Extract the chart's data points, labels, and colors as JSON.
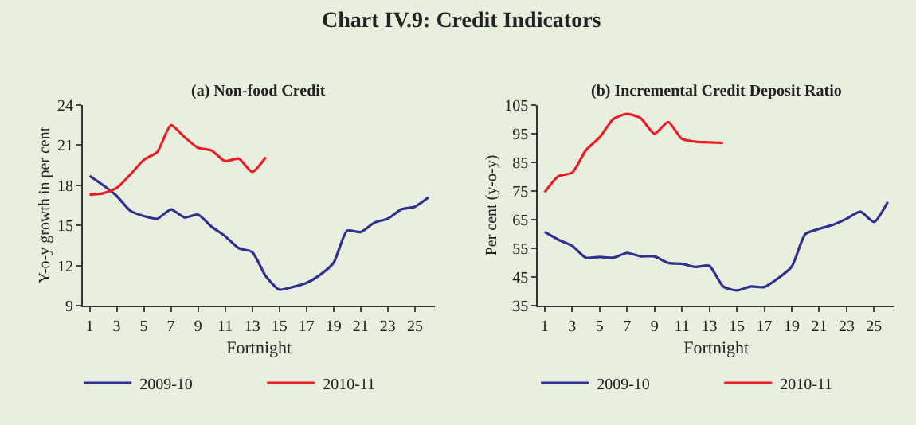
{
  "chart_data": [
    {
      "type": "line",
      "title": "(a) Non-food Credit",
      "annotations": [
        "Chart IV.9: Credit Indicators"
      ],
      "xlabel": "Fortnight",
      "ylabel": "Y-o-y growth in per cent",
      "x": [
        1,
        2,
        3,
        4,
        5,
        6,
        7,
        8,
        9,
        10,
        11,
        12,
        13,
        14,
        15,
        16,
        17,
        18,
        19,
        20,
        21,
        22,
        23,
        24,
        25,
        26
      ],
      "series": [
        {
          "name": "2009-10",
          "color": "#2e3192",
          "values": [
            18.7,
            18.0,
            17.2,
            16.1,
            15.7,
            15.5,
            16.2,
            15.6,
            15.8,
            14.9,
            14.2,
            13.3,
            13.0,
            11.2,
            10.2,
            10.4,
            10.7,
            11.3,
            12.2,
            14.6,
            14.5,
            15.2,
            15.5,
            16.2,
            16.4,
            17.1
          ]
        },
        {
          "name": "2010-11",
          "color": "#ed1c24",
          "values": [
            17.3,
            17.4,
            17.8,
            18.8,
            19.9,
            20.5,
            22.5,
            21.6,
            20.8,
            20.6,
            19.8,
            20.0,
            19.0,
            20.1,
            null,
            null,
            null,
            null,
            null,
            null,
            null,
            null,
            null,
            null,
            null,
            null
          ]
        }
      ],
      "xlim": [
        0.5,
        26.5
      ],
      "xticks": [
        1,
        3,
        5,
        7,
        9,
        11,
        13,
        15,
        17,
        19,
        21,
        23,
        25
      ],
      "ylim": [
        9,
        24
      ],
      "yticks": [
        9,
        12,
        15,
        18,
        21,
        24
      ],
      "grid": false,
      "legend": "bottom"
    },
    {
      "type": "line",
      "title": "(b) Incremental Credit Deposit Ratio",
      "xlabel": "Fortnight",
      "ylabel": "Per cent (y-o-y)",
      "x": [
        1,
        2,
        3,
        4,
        5,
        6,
        7,
        8,
        9,
        10,
        11,
        12,
        13,
        14,
        15,
        16,
        17,
        18,
        19,
        20,
        21,
        22,
        23,
        24,
        25,
        26
      ],
      "series": [
        {
          "name": "2009-10",
          "color": "#2e3192",
          "values": [
            60.7,
            58.0,
            55.9,
            51.7,
            52.0,
            51.7,
            53.4,
            52.2,
            52.2,
            49.9,
            49.6,
            48.5,
            48.9,
            41.7,
            40.3,
            41.7,
            41.5,
            44.5,
            48.6,
            60.0,
            61.8,
            63.2,
            65.3,
            67.8,
            64.2,
            71.2
          ]
        },
        {
          "name": "2010-11",
          "color": "#ed1c24",
          "values": [
            74.6,
            80.2,
            81.4,
            89.2,
            93.7,
            100.1,
            101.9,
            100.4,
            95.0,
            99.1,
            93.2,
            92.2,
            92.0,
            91.8,
            null,
            null,
            null,
            null,
            null,
            null,
            null,
            null,
            null,
            null,
            null,
            null
          ]
        }
      ],
      "xlim": [
        0.5,
        26.5
      ],
      "xticks": [
        1,
        3,
        5,
        7,
        9,
        11,
        13,
        15,
        17,
        19,
        21,
        23,
        25
      ],
      "ylim": [
        35,
        105
      ],
      "yticks": [
        35,
        45,
        55,
        65,
        75,
        85,
        95,
        105
      ],
      "grid": false,
      "legend": "bottom"
    }
  ]
}
